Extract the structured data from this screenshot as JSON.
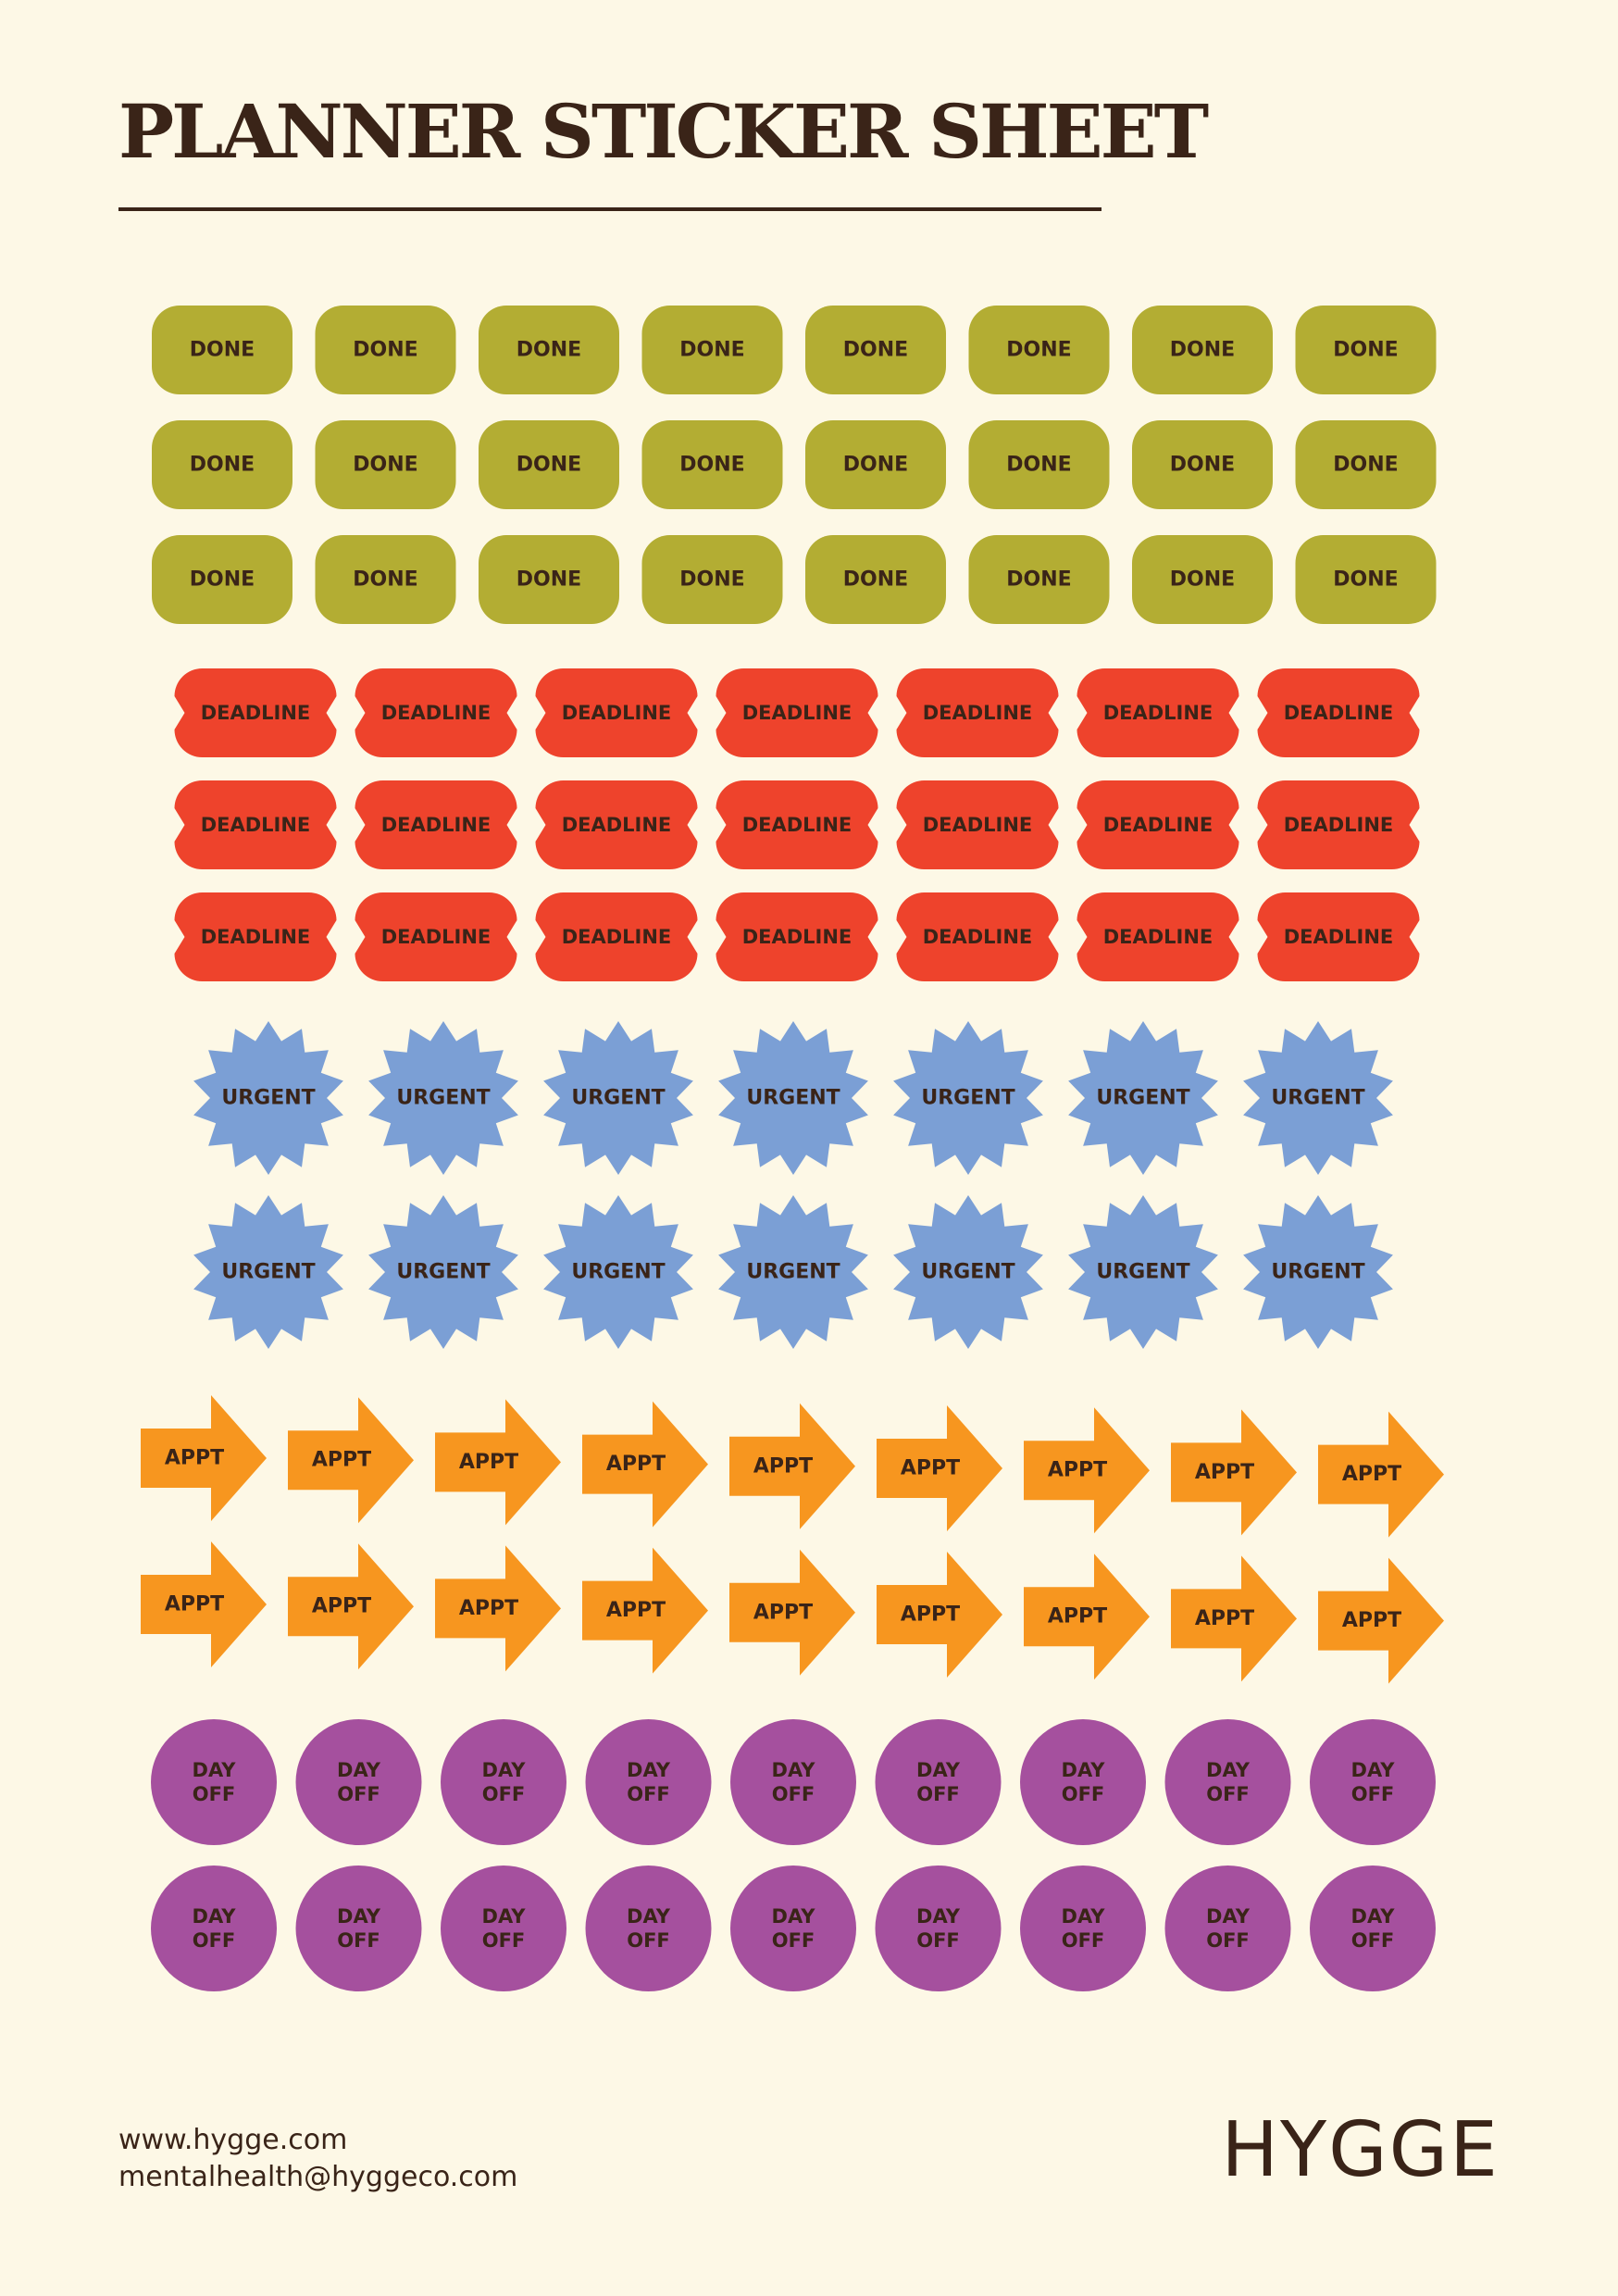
{
  "header": {
    "title": "PLANNER STICKER SHEET"
  },
  "colors": {
    "background": "#fdf8e6",
    "text": "#3a2418",
    "done": "#b3ad33",
    "deadline": "#ee432c",
    "urgent": "#7b9fd5",
    "appt": "#f7961f",
    "day_off": "#a5509e"
  },
  "stickers": [
    {
      "id": "done",
      "label": "DONE",
      "shape": "rounded-rectangle",
      "rows": 3,
      "per_row": 8
    },
    {
      "id": "deadline",
      "label": "DEADLINE",
      "shape": "ticket",
      "rows": 3,
      "per_row": 7
    },
    {
      "id": "urgent",
      "label": "URGENT",
      "shape": "starburst",
      "rows": 2,
      "per_row": 7
    },
    {
      "id": "appt",
      "label": "APPT",
      "shape": "arrow",
      "rows": 2,
      "per_row": 9
    },
    {
      "id": "day_off",
      "label": "DAY OFF",
      "label_lines": [
        "DAY",
        "OFF"
      ],
      "shape": "circle",
      "rows": 2,
      "per_row": 9
    }
  ],
  "footer": {
    "website": "www.hygge.com",
    "email": "mentalhealth@hyggeco.com",
    "brand": "HYGGE"
  }
}
